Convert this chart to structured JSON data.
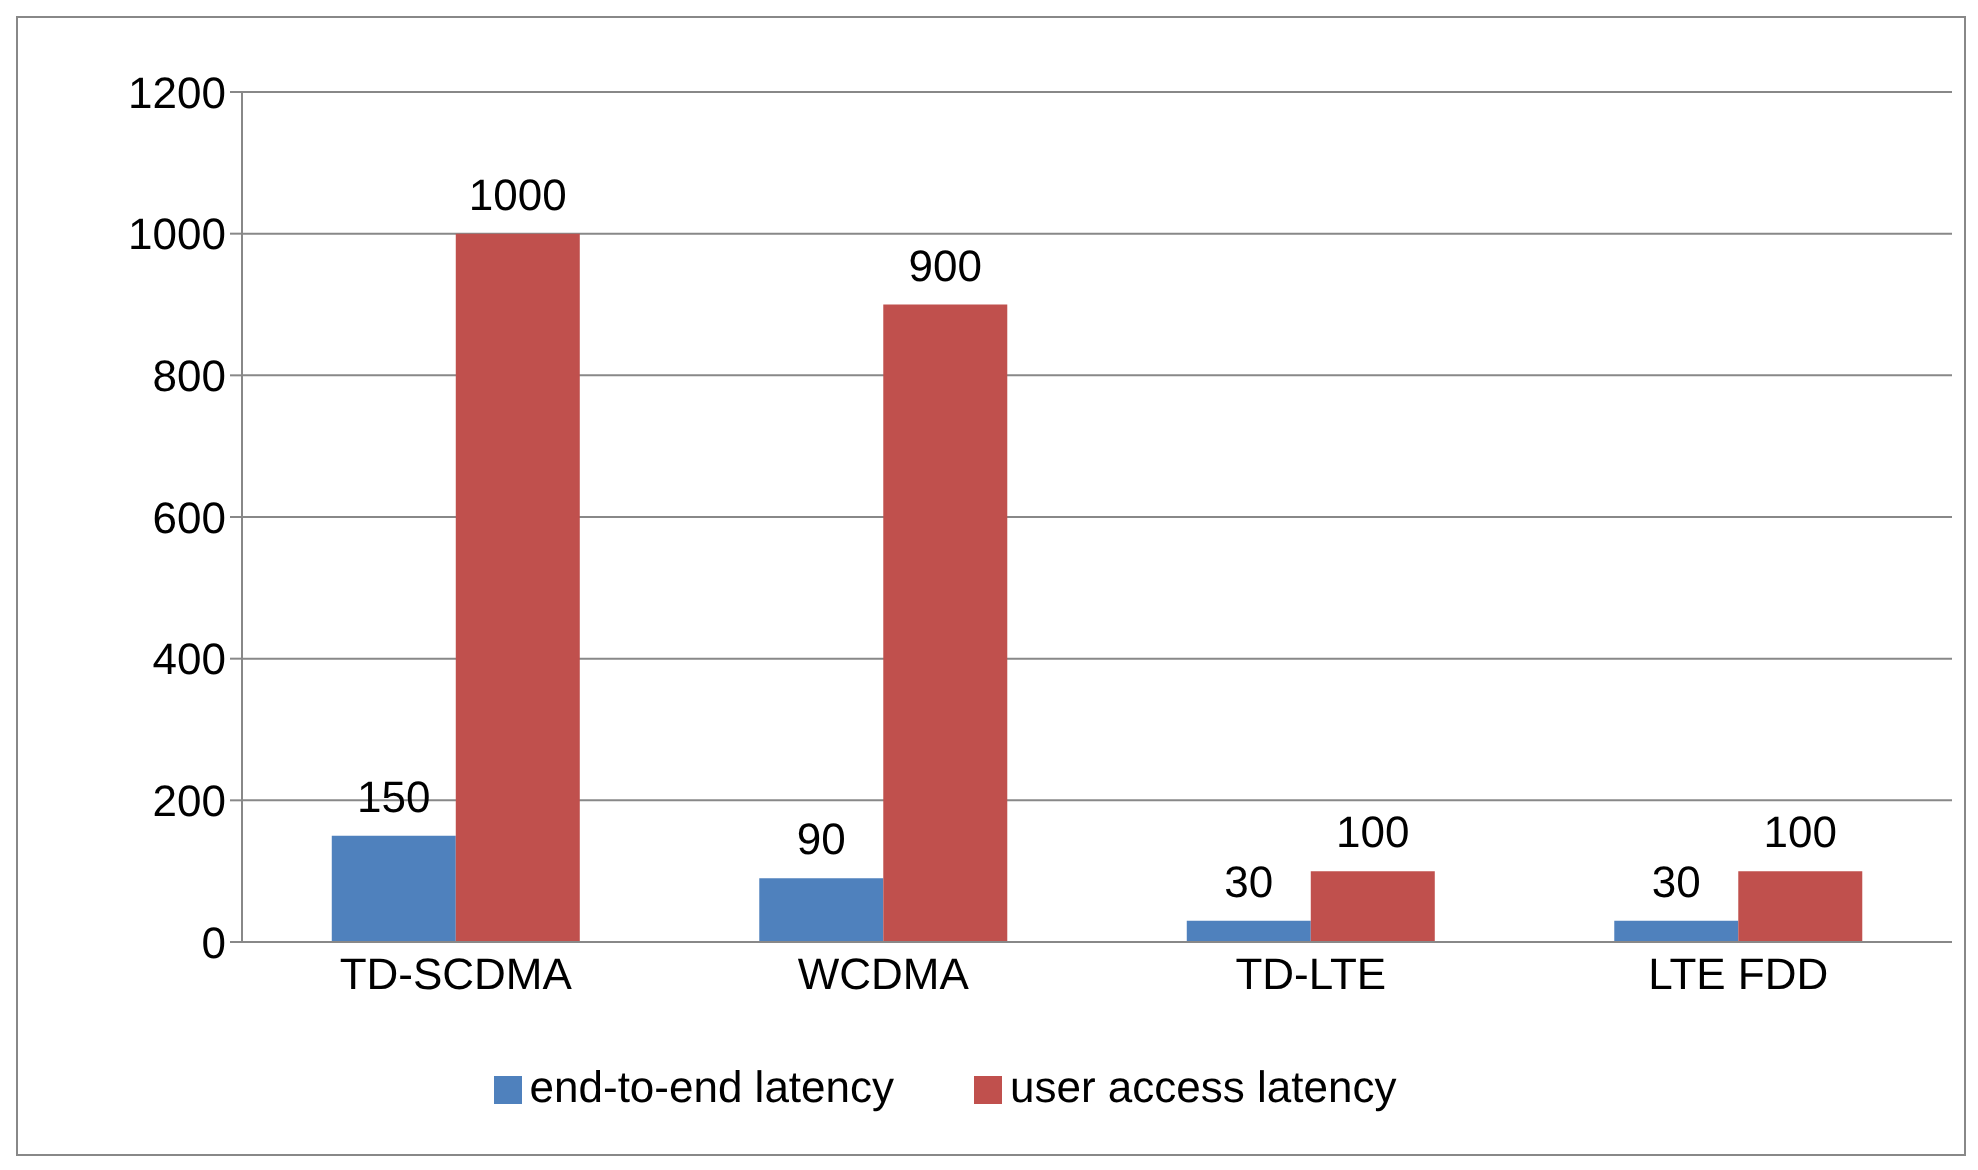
{
  "chart_data": {
    "type": "bar",
    "categories": [
      "TD-SCDMA",
      "WCDMA",
      "TD-LTE",
      "LTE FDD"
    ],
    "series": [
      {
        "name": "end-to-end latency",
        "color": "#4f81bd",
        "values": [
          150,
          90,
          30,
          30
        ]
      },
      {
        "name": "user access latency",
        "color": "#c0504d",
        "values": [
          1000,
          900,
          100,
          100
        ]
      }
    ],
    "ylim": [
      0,
      1200
    ],
    "yticks": [
      0,
      200,
      400,
      600,
      800,
      1000,
      1200
    ],
    "grid": "y",
    "legend": "bottom",
    "data_labels": true
  }
}
